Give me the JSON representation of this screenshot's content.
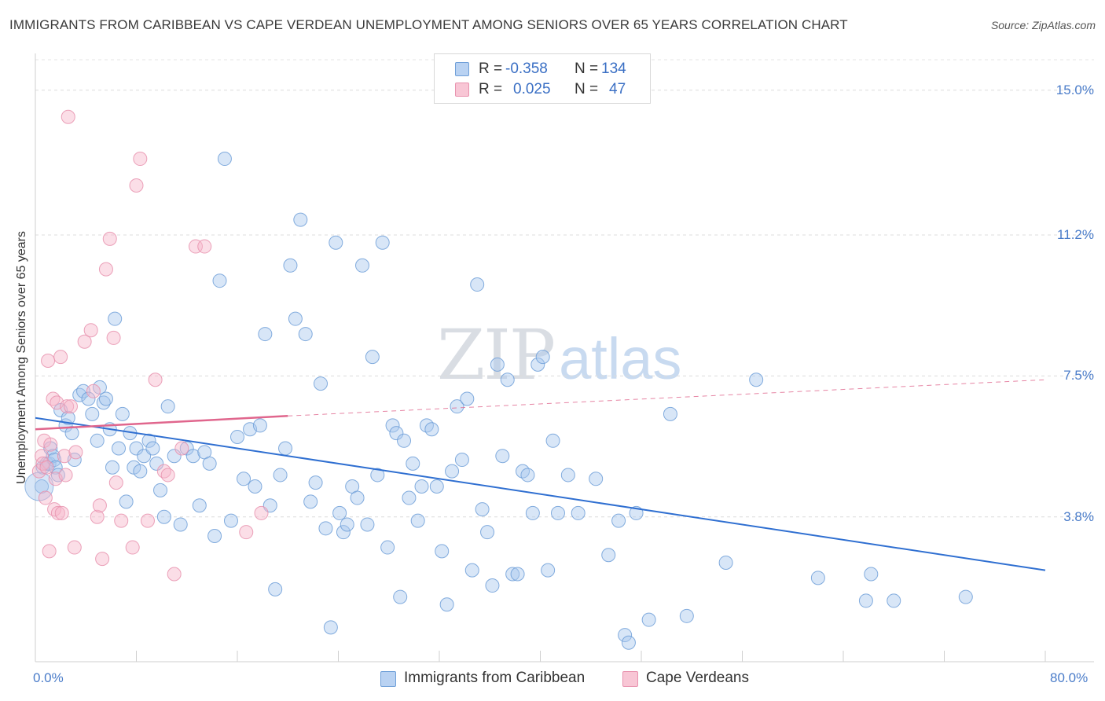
{
  "title": "IMMIGRANTS FROM CARIBBEAN VS CAPE VERDEAN UNEMPLOYMENT AMONG SENIORS OVER 65 YEARS CORRELATION CHART",
  "source": "Source: ZipAtlas.com",
  "watermark": {
    "zip": "ZIP",
    "atlas": "atlas"
  },
  "colors": {
    "blue_fill": "#a9c8ee",
    "blue_stroke": "#6f9fd8",
    "blue_line": "#2f6fd1",
    "pink_fill": "#f6b6c9",
    "pink_stroke": "#e892ae",
    "pink_line": "#e0668d",
    "axis_text": "#4a7cc9"
  },
  "legend": {
    "rows": [
      {
        "r_label": "R =",
        "r_value": "-0.358",
        "n_label": "N =",
        "n_value": "134"
      },
      {
        "r_label": "R =",
        "r_value": "0.025",
        "n_label": "N =",
        "n_value": "47"
      }
    ]
  },
  "bottom_legend": [
    "Immigrants from Caribbean",
    "Cape Verdeans"
  ],
  "chart_data": {
    "type": "scatter",
    "title": "IMMIGRANTS FROM CARIBBEAN VS CAPE VERDEAN UNEMPLOYMENT AMONG SENIORS OVER 65 YEARS CORRELATION CHART",
    "xlabel": "",
    "ylabel": "Unemployment Among Seniors over 65 years",
    "xlim": [
      0,
      80
    ],
    "ylim": [
      0,
      15.8
    ],
    "x_tick_labels": [
      "0.0%",
      "80.0%"
    ],
    "y_ticks": [
      3.8,
      7.5,
      11.2,
      15.0
    ],
    "y_tick_labels": [
      "3.8%",
      "7.5%",
      "11.2%",
      "15.0%"
    ],
    "grid": true,
    "series": [
      {
        "name": "Immigrants from Caribbean",
        "r": -0.358,
        "n": 134,
        "trend": {
          "x0": 0,
          "y0": 6.4,
          "x1": 80,
          "y1": 2.4,
          "style": "solid"
        },
        "points": [
          [
            0.5,
            4.6
          ],
          [
            0.6,
            5.1
          ],
          [
            0.9,
            5.2
          ],
          [
            1.1,
            5.2
          ],
          [
            1.2,
            5.6
          ],
          [
            1.4,
            5.4
          ],
          [
            1.5,
            5.3
          ],
          [
            1.6,
            5.1
          ],
          [
            1.8,
            4.9
          ],
          [
            2.0,
            6.6
          ],
          [
            2.4,
            6.2
          ],
          [
            2.6,
            6.4
          ],
          [
            2.9,
            6.0
          ],
          [
            3.1,
            5.3
          ],
          [
            3.5,
            7.0
          ],
          [
            3.8,
            7.1
          ],
          [
            4.2,
            6.9
          ],
          [
            4.5,
            6.5
          ],
          [
            4.9,
            5.8
          ],
          [
            5.1,
            7.2
          ],
          [
            5.4,
            6.8
          ],
          [
            5.6,
            6.9
          ],
          [
            5.9,
            6.1
          ],
          [
            6.1,
            5.1
          ],
          [
            6.3,
            9.0
          ],
          [
            6.6,
            5.6
          ],
          [
            6.9,
            6.5
          ],
          [
            7.2,
            4.2
          ],
          [
            7.5,
            6.0
          ],
          [
            7.8,
            5.1
          ],
          [
            8.0,
            5.6
          ],
          [
            8.3,
            5.0
          ],
          [
            8.6,
            5.4
          ],
          [
            9.0,
            5.8
          ],
          [
            9.3,
            5.6
          ],
          [
            9.6,
            5.2
          ],
          [
            9.9,
            4.5
          ],
          [
            10.2,
            3.8
          ],
          [
            10.5,
            6.7
          ],
          [
            11.0,
            5.4
          ],
          [
            11.5,
            3.6
          ],
          [
            12.0,
            5.6
          ],
          [
            12.5,
            5.4
          ],
          [
            13.0,
            4.1
          ],
          [
            13.4,
            5.5
          ],
          [
            13.8,
            5.2
          ],
          [
            14.2,
            3.3
          ],
          [
            14.6,
            10.0
          ],
          [
            15.0,
            13.2
          ],
          [
            15.5,
            3.7
          ],
          [
            16.0,
            5.9
          ],
          [
            16.5,
            4.8
          ],
          [
            17.0,
            6.1
          ],
          [
            17.4,
            4.6
          ],
          [
            17.8,
            6.2
          ],
          [
            18.2,
            8.6
          ],
          [
            18.6,
            4.1
          ],
          [
            19.0,
            1.9
          ],
          [
            19.4,
            4.9
          ],
          [
            19.8,
            5.6
          ],
          [
            20.2,
            10.4
          ],
          [
            20.6,
            9.0
          ],
          [
            21.0,
            11.6
          ],
          [
            21.4,
            8.6
          ],
          [
            21.8,
            4.2
          ],
          [
            22.2,
            4.7
          ],
          [
            22.6,
            7.3
          ],
          [
            23.0,
            3.5
          ],
          [
            23.4,
            0.9
          ],
          [
            23.8,
            11.0
          ],
          [
            24.1,
            3.9
          ],
          [
            24.4,
            3.4
          ],
          [
            24.7,
            3.6
          ],
          [
            25.1,
            4.6
          ],
          [
            25.5,
            4.3
          ],
          [
            25.9,
            10.4
          ],
          [
            26.3,
            3.6
          ],
          [
            26.7,
            8.0
          ],
          [
            27.1,
            4.9
          ],
          [
            27.5,
            11.0
          ],
          [
            27.9,
            3.0
          ],
          [
            28.3,
            6.2
          ],
          [
            28.6,
            6.0
          ],
          [
            28.9,
            1.7
          ],
          [
            29.2,
            5.8
          ],
          [
            29.6,
            4.3
          ],
          [
            29.9,
            5.2
          ],
          [
            30.3,
            3.7
          ],
          [
            30.6,
            4.6
          ],
          [
            31.0,
            6.2
          ],
          [
            31.4,
            6.1
          ],
          [
            31.8,
            4.6
          ],
          [
            32.2,
            2.9
          ],
          [
            32.6,
            1.5
          ],
          [
            33.0,
            5.0
          ],
          [
            33.4,
            6.7
          ],
          [
            33.8,
            5.3
          ],
          [
            34.2,
            6.9
          ],
          [
            34.6,
            2.4
          ],
          [
            35.0,
            9.9
          ],
          [
            35.4,
            4.0
          ],
          [
            35.8,
            3.4
          ],
          [
            36.2,
            2.0
          ],
          [
            36.6,
            7.8
          ],
          [
            37.0,
            5.4
          ],
          [
            37.4,
            7.4
          ],
          [
            37.8,
            2.3
          ],
          [
            38.2,
            2.3
          ],
          [
            38.6,
            5.0
          ],
          [
            39.0,
            4.9
          ],
          [
            39.4,
            3.9
          ],
          [
            39.8,
            7.8
          ],
          [
            40.2,
            8.0
          ],
          [
            40.6,
            2.4
          ],
          [
            41.0,
            5.8
          ],
          [
            41.4,
            3.9
          ],
          [
            42.2,
            4.9
          ],
          [
            43.0,
            3.9
          ],
          [
            44.4,
            4.8
          ],
          [
            45.4,
            2.8
          ],
          [
            46.2,
            3.7
          ],
          [
            46.7,
            0.7
          ],
          [
            47.0,
            0.5
          ],
          [
            47.6,
            3.9
          ],
          [
            48.6,
            1.1
          ],
          [
            50.3,
            6.5
          ],
          [
            51.6,
            1.2
          ],
          [
            54.7,
            2.6
          ],
          [
            57.1,
            7.4
          ],
          [
            62.0,
            2.2
          ],
          [
            65.8,
            1.6
          ],
          [
            66.2,
            2.3
          ],
          [
            68.0,
            1.6
          ],
          [
            73.7,
            1.7
          ]
        ]
      },
      {
        "name": "Cape Verdeans",
        "r": 0.025,
        "n": 47,
        "trend": {
          "x0": 0,
          "y0": 6.1,
          "x1": 20,
          "y1": 6.45,
          "x2": 80,
          "y2": 7.4,
          "style": "solid-then-dashed"
        },
        "points": [
          [
            0.3,
            5.0
          ],
          [
            0.5,
            5.4
          ],
          [
            0.6,
            5.2
          ],
          [
            0.7,
            5.8
          ],
          [
            0.8,
            4.3
          ],
          [
            0.9,
            5.1
          ],
          [
            1.0,
            7.9
          ],
          [
            1.1,
            2.9
          ],
          [
            1.2,
            5.7
          ],
          [
            1.4,
            6.9
          ],
          [
            1.5,
            4.0
          ],
          [
            1.6,
            4.8
          ],
          [
            1.7,
            6.8
          ],
          [
            1.8,
            3.9
          ],
          [
            2.0,
            8.0
          ],
          [
            2.1,
            3.9
          ],
          [
            2.3,
            5.4
          ],
          [
            2.4,
            4.9
          ],
          [
            2.5,
            6.7
          ],
          [
            2.6,
            14.3
          ],
          [
            2.8,
            6.7
          ],
          [
            3.1,
            3.0
          ],
          [
            3.2,
            5.5
          ],
          [
            3.9,
            8.4
          ],
          [
            4.4,
            8.7
          ],
          [
            4.6,
            7.1
          ],
          [
            4.9,
            3.8
          ],
          [
            5.1,
            4.1
          ],
          [
            5.3,
            2.7
          ],
          [
            5.6,
            10.3
          ],
          [
            5.9,
            11.1
          ],
          [
            6.2,
            8.5
          ],
          [
            6.4,
            4.7
          ],
          [
            6.8,
            3.7
          ],
          [
            7.7,
            3.0
          ],
          [
            8.0,
            12.5
          ],
          [
            8.3,
            13.2
          ],
          [
            8.9,
            3.7
          ],
          [
            9.5,
            7.4
          ],
          [
            10.2,
            5.0
          ],
          [
            10.5,
            4.9
          ],
          [
            11.0,
            2.3
          ],
          [
            11.6,
            5.6
          ],
          [
            12.7,
            10.9
          ],
          [
            13.4,
            10.9
          ],
          [
            16.7,
            3.4
          ],
          [
            17.9,
            3.9
          ]
        ]
      }
    ]
  }
}
